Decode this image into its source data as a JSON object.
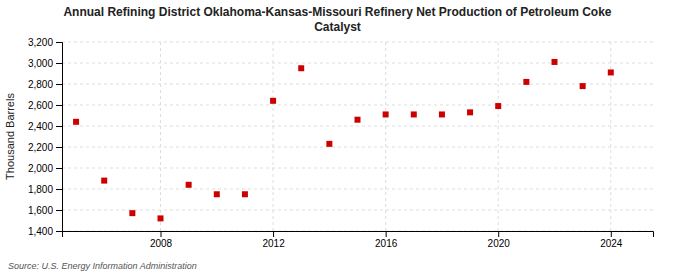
{
  "chart_data": {
    "type": "scatter",
    "title": "Annual Refining District Oklahoma-Kansas-Missouri Refinery Net Production of Petroleum Coke\nCatalyst",
    "ylabel": "Thousand Barrels",
    "source": "Source: U.S. Energy Information Administration",
    "x": [
      2005,
      2006,
      2007,
      2008,
      2009,
      2010,
      2011,
      2012,
      2013,
      2014,
      2015,
      2016,
      2017,
      2018,
      2019,
      2020,
      2021,
      2022,
      2023,
      2024
    ],
    "values": [
      2440,
      1880,
      1570,
      1520,
      1840,
      1750,
      1750,
      2640,
      2950,
      2230,
      2460,
      2510,
      2510,
      2510,
      2530,
      2590,
      2820,
      3010,
      2780,
      2910
    ],
    "color": "#cc0000",
    "marker": "square",
    "xlim": [
      2004.5,
      2025.5
    ],
    "xticks": [
      2008,
      2012,
      2016,
      2020,
      2024
    ],
    "ylim": [
      1400,
      3200
    ],
    "yticks": [
      {
        "value": 1400,
        "label": "1,400"
      },
      {
        "value": 1600,
        "label": "1,600"
      },
      {
        "value": 1800,
        "label": "1,800"
      },
      {
        "value": 2000,
        "label": "2,000"
      },
      {
        "value": 2200,
        "label": "2,200"
      },
      {
        "value": 2400,
        "label": "2,400"
      },
      {
        "value": 2600,
        "label": "2,600"
      },
      {
        "value": 2800,
        "label": "2,800"
      },
      {
        "value": 3000,
        "label": "3,000"
      },
      {
        "value": 3200,
        "label": "3,200"
      }
    ],
    "grid": true
  }
}
